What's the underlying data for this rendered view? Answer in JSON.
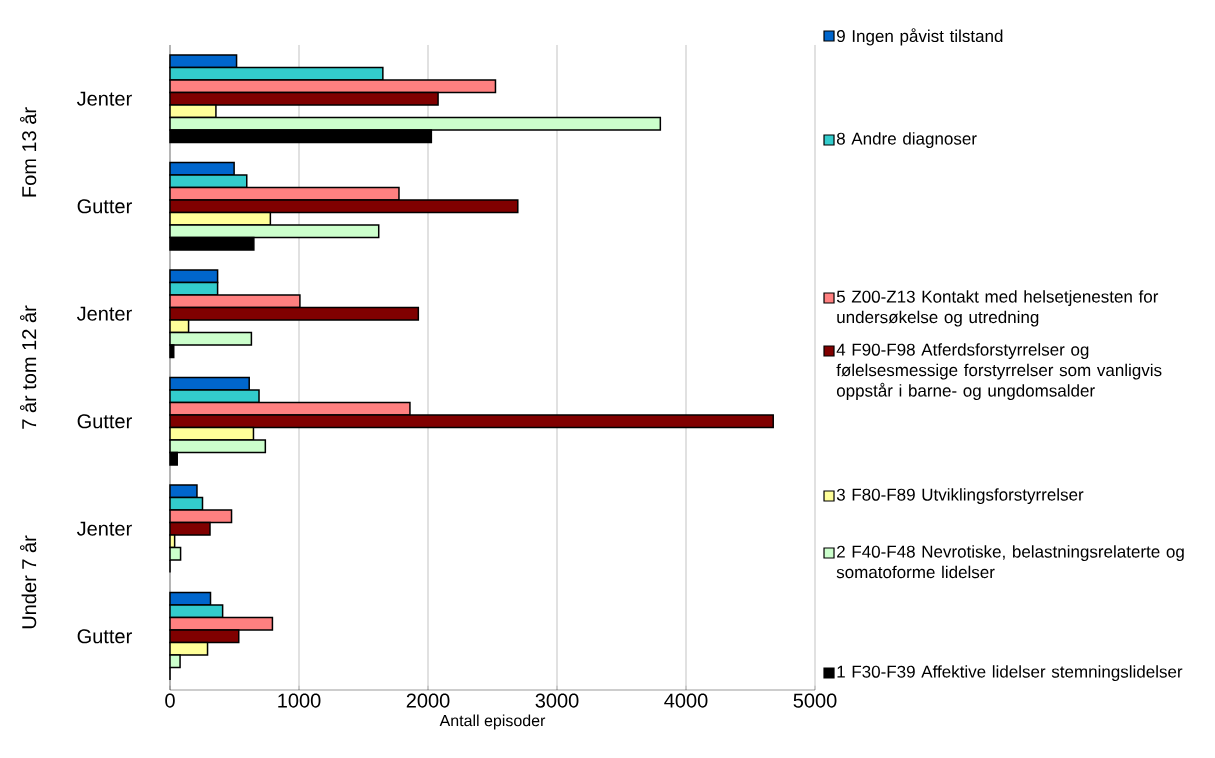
{
  "chart_data": {
    "type": "bar",
    "orientation": "horizontal",
    "xlabel": "Antall episoder",
    "categories": [
      "Jenter",
      "Gutter",
      "Jenter",
      "Gutter",
      "Jenter",
      "Gutter"
    ],
    "annotations": [
      "Fom 13 år",
      "7 år tom 12 år",
      "Under 7 år"
    ],
    "series": [
      {
        "name": "9 Ingen påvist tilstand",
        "color": "#0066cc",
        "values": [
          516,
          497,
          369,
          614,
          209,
          314
        ]
      },
      {
        "name": "8 Andre diagnoser",
        "color": "#33cccc",
        "values": [
          1650,
          595,
          369,
          690,
          252,
          408
        ]
      },
      {
        "name": "5 Z00-Z13 Kontakt med helsetjenesten for undersøkelse og utredning",
        "color": "#ff8080",
        "values": [
          2523,
          1775,
          1007,
          1860,
          477,
          794
        ]
      },
      {
        "name": "4 F90-F98 Atferdsforstyrrelser og følelsesmessige forstyrrelser som vanligvis oppstår i barne- og ungdomsalder",
        "color": "#800000",
        "values": [
          2078,
          2696,
          1925,
          4676,
          310,
          533
        ]
      },
      {
        "name": "3 F80-F89 Utviklingsforstyrrelser",
        "color": "#ffff99",
        "values": [
          356,
          778,
          144,
          647,
          36,
          291
        ]
      },
      {
        "name": "2 F40-F48 Nevrotiske, belastningsrelaterte og somatoforme lidelser",
        "color": "#ccffcc",
        "values": [
          3801,
          1618,
          631,
          739,
          82,
          78
        ]
      },
      {
        "name": "1 F30-F39 Affektive lidelser stemningslidelser",
        "color": "#000000",
        "values": [
          2026,
          650,
          29,
          56,
          0,
          0
        ]
      }
    ],
    "xlim": [
      0,
      5000
    ],
    "xticks": [
      0,
      1000,
      2000,
      3000,
      4000,
      5000
    ],
    "grid": "x",
    "legend": "right"
  }
}
